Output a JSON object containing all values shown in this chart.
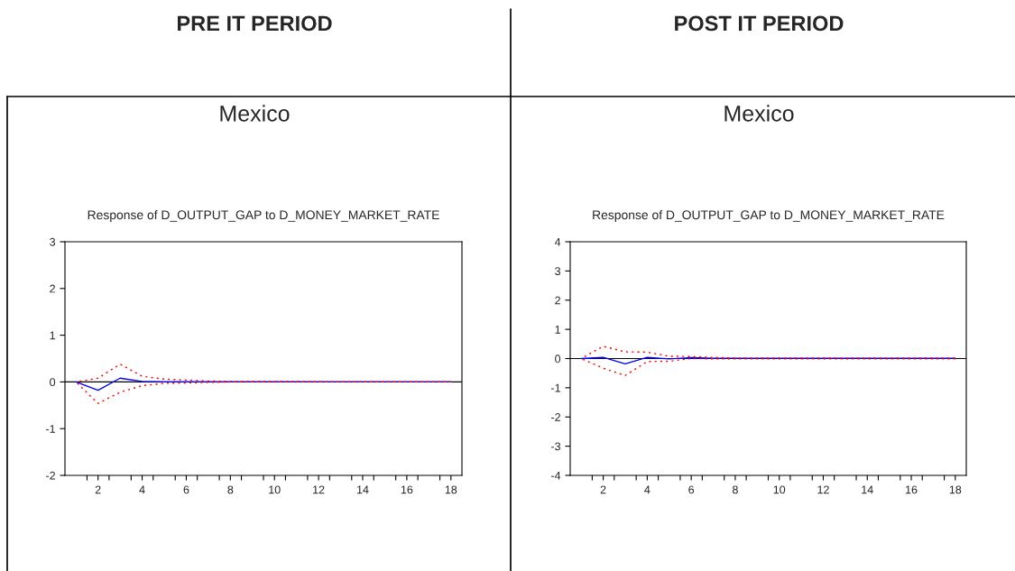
{
  "chart_data": [
    {
      "type": "line",
      "title": "Response of D_OUTPUT_GAP to D_MONEY_MARKET_RATE",
      "annotations": [
        "PRE IT PERIOD",
        "Mexico"
      ],
      "x": [
        1,
        2,
        3,
        4,
        5,
        6,
        7,
        8,
        9,
        10,
        11,
        12,
        13,
        14,
        15,
        16,
        17,
        18
      ],
      "series": [
        {
          "color": "#0000ff",
          "line_style": "solid",
          "values": [
            0,
            -0.18,
            0.08,
            0.01,
            0,
            0,
            0,
            0,
            0,
            0,
            0,
            0,
            0,
            0,
            0,
            0,
            0,
            0
          ]
        },
        {
          "color": "#ff0000",
          "line_style": "dashed",
          "values": [
            0,
            0.08,
            0.38,
            0.12,
            0.06,
            0.04,
            0.02,
            0.01,
            0.01,
            0.01,
            0.01,
            0,
            0,
            0,
            0,
            0,
            0,
            0
          ]
        },
        {
          "color": "#ff0000",
          "line_style": "dashed",
          "values": [
            0,
            -0.46,
            -0.22,
            -0.08,
            -0.03,
            -0.02,
            -0.01,
            0,
            0,
            0,
            0,
            0,
            0,
            0,
            0,
            0,
            0,
            0
          ]
        }
      ],
      "xlim": [
        0.5,
        18.5
      ],
      "xticks": [
        {
          "value": 1.5,
          "label": null
        },
        {
          "value": 2,
          "label": "2"
        },
        {
          "value": 2.5,
          "label": null
        },
        {
          "value": 3.5,
          "label": null
        },
        {
          "value": 4,
          "label": "4"
        },
        {
          "value": 4.5,
          "label": null
        },
        {
          "value": 5.5,
          "label": null
        },
        {
          "value": 6,
          "label": "6"
        },
        {
          "value": 6.5,
          "label": null
        },
        {
          "value": 7.5,
          "label": null
        },
        {
          "value": 8,
          "label": "8"
        },
        {
          "value": 8.5,
          "label": null
        },
        {
          "value": 9.5,
          "label": null
        },
        {
          "value": 10,
          "label": "10"
        },
        {
          "value": 10.5,
          "label": null
        },
        {
          "value": 11.5,
          "label": null
        },
        {
          "value": 12,
          "label": "12"
        },
        {
          "value": 12.5,
          "label": null
        },
        {
          "value": 13.5,
          "label": null
        },
        {
          "value": 14,
          "label": "14"
        },
        {
          "value": 14.5,
          "label": null
        },
        {
          "value": 15.5,
          "label": null
        },
        {
          "value": 16,
          "label": "16"
        },
        {
          "value": 16.5,
          "label": null
        },
        {
          "value": 17.5,
          "label": null
        },
        {
          "value": 18,
          "label": "18"
        }
      ],
      "ylim": [
        -2,
        3
      ],
      "yticks": [
        -2,
        -1,
        0,
        1,
        2,
        3
      ],
      "ref_lines": [
        {
          "axis": "y",
          "value": 0,
          "color": "#000000"
        }
      ],
      "grid": false,
      "legend": false
    },
    {
      "type": "line",
      "title": "Response of D_OUTPUT_GAP to D_MONEY_MARKET_RATE",
      "annotations": [
        "POST IT PERIOD",
        "Mexico"
      ],
      "x": [
        1,
        2,
        3,
        4,
        5,
        6,
        7,
        8,
        9,
        10,
        11,
        12,
        13,
        14,
        15,
        16,
        17,
        18
      ],
      "series": [
        {
          "color": "#0000ff",
          "line_style": "solid",
          "values": [
            0,
            0.04,
            -0.18,
            0.04,
            -0.01,
            0.03,
            0.01,
            0.01,
            0.01,
            0.01,
            0.01,
            0.01,
            0.01,
            0.01,
            0.01,
            0.01,
            0.01,
            0.01
          ]
        },
        {
          "color": "#ff0000",
          "line_style": "dashed",
          "values": [
            0,
            0.42,
            0.23,
            0.22,
            0.08,
            0.07,
            0.04,
            0.02,
            0.02,
            0.02,
            0.02,
            0.02,
            0.02,
            0.02,
            0.02,
            0.02,
            0.02,
            0.02
          ]
        },
        {
          "color": "#ff0000",
          "line_style": "dashed",
          "values": [
            0,
            -0.33,
            -0.58,
            -0.1,
            -0.09,
            0,
            -0.01,
            -0.01,
            -0.01,
            -0.01,
            -0.01,
            -0.01,
            -0.01,
            -0.01,
            -0.01,
            -0.01,
            -0.01,
            -0.01
          ]
        }
      ],
      "xlim": [
        0.5,
        18.5
      ],
      "xticks": [
        {
          "value": 1.5,
          "label": null
        },
        {
          "value": 2,
          "label": "2"
        },
        {
          "value": 2.5,
          "label": null
        },
        {
          "value": 3.5,
          "label": null
        },
        {
          "value": 4,
          "label": "4"
        },
        {
          "value": 4.5,
          "label": null
        },
        {
          "value": 5.5,
          "label": null
        },
        {
          "value": 6,
          "label": "6"
        },
        {
          "value": 6.5,
          "label": null
        },
        {
          "value": 7.5,
          "label": null
        },
        {
          "value": 8,
          "label": "8"
        },
        {
          "value": 8.5,
          "label": null
        },
        {
          "value": 9.5,
          "label": null
        },
        {
          "value": 10,
          "label": "10"
        },
        {
          "value": 10.5,
          "label": null
        },
        {
          "value": 11.5,
          "label": null
        },
        {
          "value": 12,
          "label": "12"
        },
        {
          "value": 12.5,
          "label": null
        },
        {
          "value": 13.5,
          "label": null
        },
        {
          "value": 14,
          "label": "14"
        },
        {
          "value": 14.5,
          "label": null
        },
        {
          "value": 15.5,
          "label": null
        },
        {
          "value": 16,
          "label": "16"
        },
        {
          "value": 16.5,
          "label": null
        },
        {
          "value": 17.5,
          "label": null
        },
        {
          "value": 18,
          "label": "18"
        }
      ],
      "ylim": [
        -4,
        4
      ],
      "yticks": [
        -4,
        -3,
        -2,
        -1,
        0,
        1,
        2,
        3,
        4
      ],
      "ref_lines": [
        {
          "axis": "y",
          "value": 0,
          "color": "#000000"
        }
      ],
      "grid": false,
      "legend": false
    }
  ]
}
